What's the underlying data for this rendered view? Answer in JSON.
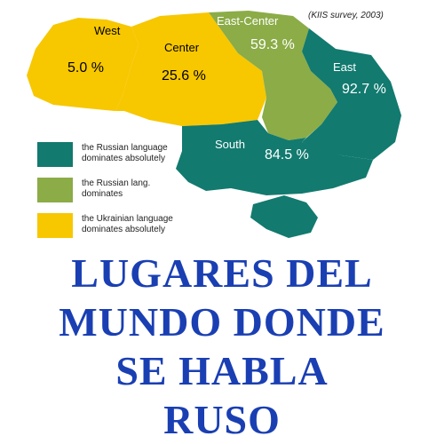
{
  "source": "(KIIS survey, 2003)",
  "colors": {
    "dominates_absolutely_russian": "#127a6f",
    "dominates_russian": "#8bac47",
    "dominates_absolutely_ukrainian": "#f7c700",
    "title": "#1a3fb3"
  },
  "regions": [
    {
      "name": "West",
      "value": "5.0 %"
    },
    {
      "name": "Center",
      "value": "25.6 %"
    },
    {
      "name": "East-Center",
      "value": "59.3 %"
    },
    {
      "name": "East",
      "value": "92.7 %"
    },
    {
      "name": "South",
      "value": "84.5 %"
    }
  ],
  "legend": [
    {
      "line1": "the Russian language",
      "line2": "dominates absolutely"
    },
    {
      "line1": "the Russian lang.",
      "line2": "dominates"
    },
    {
      "line1": "the Ukrainian language",
      "line2": "dominates  absolutely"
    }
  ],
  "title_lines": [
    "LUGARES DEL",
    "MUNDO DONDE",
    "SE HABLA",
    "RUSO"
  ]
}
